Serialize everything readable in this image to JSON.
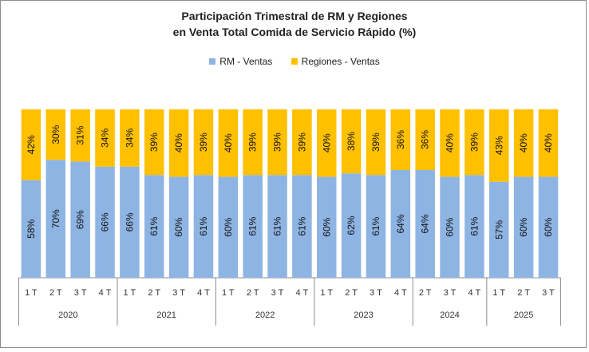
{
  "chart_data": {
    "type": "bar",
    "stacked": true,
    "title": "Participación Trimestral de RM y Regiones",
    "subtitle": "en Venta Total Comida de Servicio Rápido (%)",
    "colors": {
      "rm": "#8eb4e3",
      "regiones": "#ffc000"
    },
    "groups": [
      {
        "year": "2020",
        "quarters": [
          "1 T",
          "2 T",
          "3 T",
          "4 T"
        ]
      },
      {
        "year": "2021",
        "quarters": [
          "1 T",
          "2 T",
          "3 T",
          "4 T"
        ]
      },
      {
        "year": "2022",
        "quarters": [
          "1 T",
          "2 T",
          "3 T",
          "4 T"
        ]
      },
      {
        "year": "2023",
        "quarters": [
          "1 T",
          "2 T",
          "3 T",
          "4 T"
        ]
      },
      {
        "year": "2024",
        "quarters": [
          "2 T",
          "3 T",
          "4 T"
        ]
      },
      {
        "year": "2025",
        "quarters": [
          "1 T",
          "2 T",
          "3 T"
        ]
      }
    ],
    "series": [
      {
        "name": "RM - Ventas",
        "values": [
          58,
          70,
          69,
          66,
          66,
          61,
          60,
          61,
          60,
          61,
          61,
          61,
          60,
          62,
          61,
          64,
          64,
          60,
          61,
          57,
          60,
          60
        ]
      },
      {
        "name": "Regiones - Ventas",
        "values": [
          42,
          30,
          31,
          34,
          34,
          39,
          40,
          39,
          40,
          39,
          39,
          39,
          40,
          38,
          39,
          36,
          36,
          40,
          39,
          43,
          40,
          40
        ]
      }
    ],
    "ylim": [
      0,
      100
    ],
    "legend_position": "top"
  }
}
